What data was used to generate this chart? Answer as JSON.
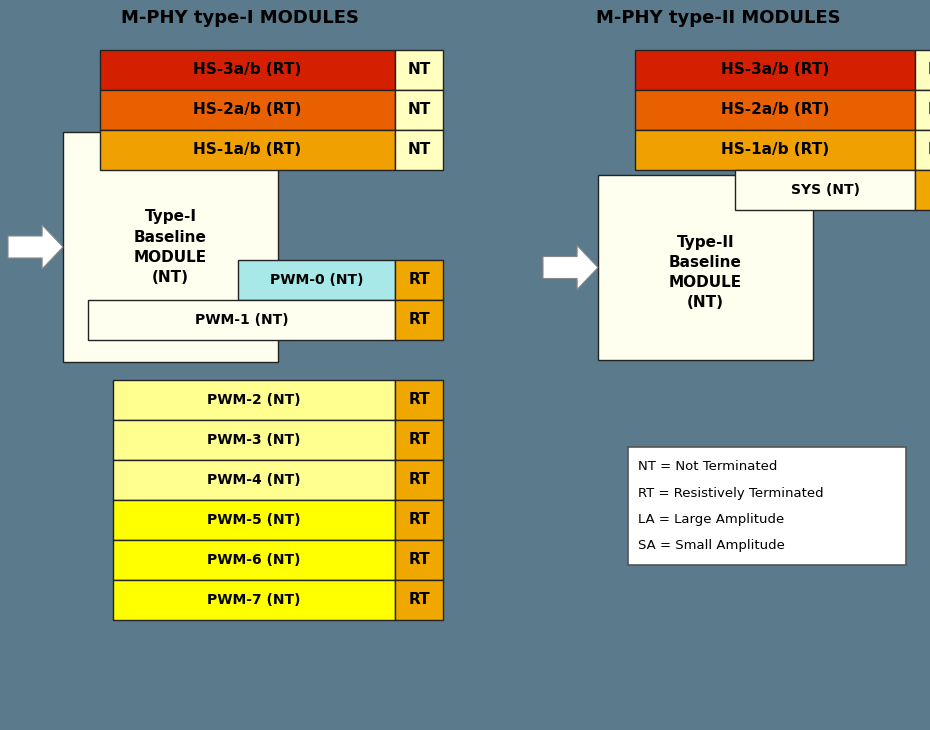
{
  "bg_color": "#5b7b8c",
  "title_left": "M-PHY type-I MODULES",
  "title_right": "M-PHY type-II MODULES",
  "title_fontsize": 13,
  "legend_text": [
    "NT = Not Terminated",
    "RT = Resistively Terminated",
    "LA = Large Amplitude",
    "SA = Small Amplitude"
  ],
  "hs3_color": "#d42000",
  "hs2_color": "#e86000",
  "hs1_color": "#f0a000",
  "nt_color": "#ffffc0",
  "rt_color": "#f0a800",
  "pwm0_color": "#a8e8e8",
  "pwm234_color": "#ffff90",
  "pwm567_color": "#ffff00",
  "pwm1_color": "#fffff0",
  "baseline_color": "#fffff0",
  "hs_labels": [
    "HS-3a/b (RT)",
    "HS-2a/b (RT)",
    "HS-1a/b (RT)"
  ],
  "pwm_labels": [
    "PWM-0 (NT)",
    "PWM-1 (NT)",
    "PWM-2 (NT)",
    "PWM-3 (NT)",
    "PWM-4 (NT)",
    "PWM-5 (NT)",
    "PWM-6 (NT)",
    "PWM-7 (NT)"
  ]
}
